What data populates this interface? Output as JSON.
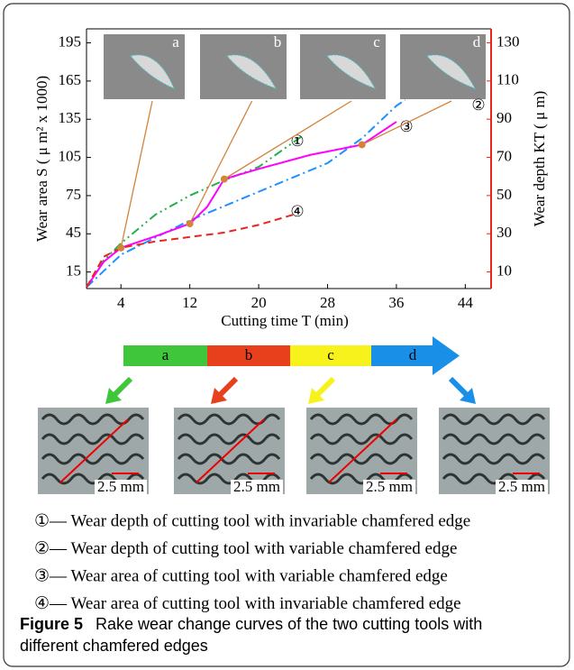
{
  "chart_data": {
    "type": "line",
    "x_label": "Cutting time T (min)",
    "y_label": "Wear area S ( μ m² x 1000)",
    "y2_label": "Wear depth KT ( μ m)",
    "xlim": [
      0,
      47
    ],
    "xticks": [
      4,
      12,
      20,
      28,
      36,
      44
    ],
    "ylim": [
      2,
      206
    ],
    "yticks": [
      15,
      45,
      75,
      105,
      135,
      165,
      195
    ],
    "y2lim": [
      1.3,
      137.3
    ],
    "y2ticks": [
      10,
      30,
      50,
      70,
      90,
      110,
      130
    ],
    "y2_color": "#e8251f",
    "series": [
      {
        "name": "①",
        "color": "#22b04a",
        "dash": "10 4 2 4 2 4",
        "axis": "y2",
        "x": [
          0,
          2,
          4,
          8,
          12,
          16,
          20,
          25
        ],
        "values": [
          2,
          16,
          25,
          40,
          50,
          58,
          65,
          81
        ]
      },
      {
        "name": "②",
        "color": "#1e90ff",
        "dash": "10 4 2 4",
        "axis": "y2",
        "x": [
          0,
          4,
          12,
          20,
          28,
          32,
          36,
          37
        ],
        "values": [
          2,
          19,
          37,
          52,
          67,
          80,
          97,
          100
        ]
      },
      {
        "name": "③",
        "color": "#ff00ff",
        "dash": "",
        "axis": "y",
        "x": [
          0,
          2,
          4,
          8,
          12,
          14,
          16,
          20,
          26,
          32,
          36
        ],
        "values": [
          3,
          23,
          34,
          43,
          53,
          66,
          88,
          96,
          107,
          115,
          133
        ],
        "marker_color": "#d2843c",
        "marker_indices": [
          2,
          4,
          6,
          9
        ]
      },
      {
        "name": "④",
        "color": "#e8251f",
        "dash": "8 5",
        "axis": "y",
        "x": [
          0,
          2,
          4,
          8,
          16,
          20,
          24
        ],
        "values": [
          3,
          27,
          34,
          39,
          46,
          52,
          60
        ]
      }
    ]
  },
  "insets": [
    "a",
    "b",
    "c",
    "d"
  ],
  "stages": [
    {
      "label": "a",
      "color": "#3fc63a"
    },
    {
      "label": "b",
      "color": "#e8401c"
    },
    {
      "label": "c",
      "color": "#f7f21c"
    },
    {
      "label": "d",
      "color": "#1a8fe8"
    }
  ],
  "photos": [
    {
      "scale": "2.5 mm"
    },
    {
      "scale": "2.5 mm"
    },
    {
      "scale": "2.5 mm"
    },
    {
      "scale": "2.5 mm"
    }
  ],
  "legend": [
    "①— Wear depth of cutting tool with invariable chamfered edge",
    "②— Wear depth of cutting tool with variable chamfered edge",
    "③— Wear area of cutting tool with variable chamfered edge",
    "④— Wear area of cutting tool with invariable chamfered edge"
  ],
  "caption": {
    "label": "Figure 5",
    "text": "Rake wear change curves of the two cutting tools with",
    "text2": "different chamfered edges"
  }
}
